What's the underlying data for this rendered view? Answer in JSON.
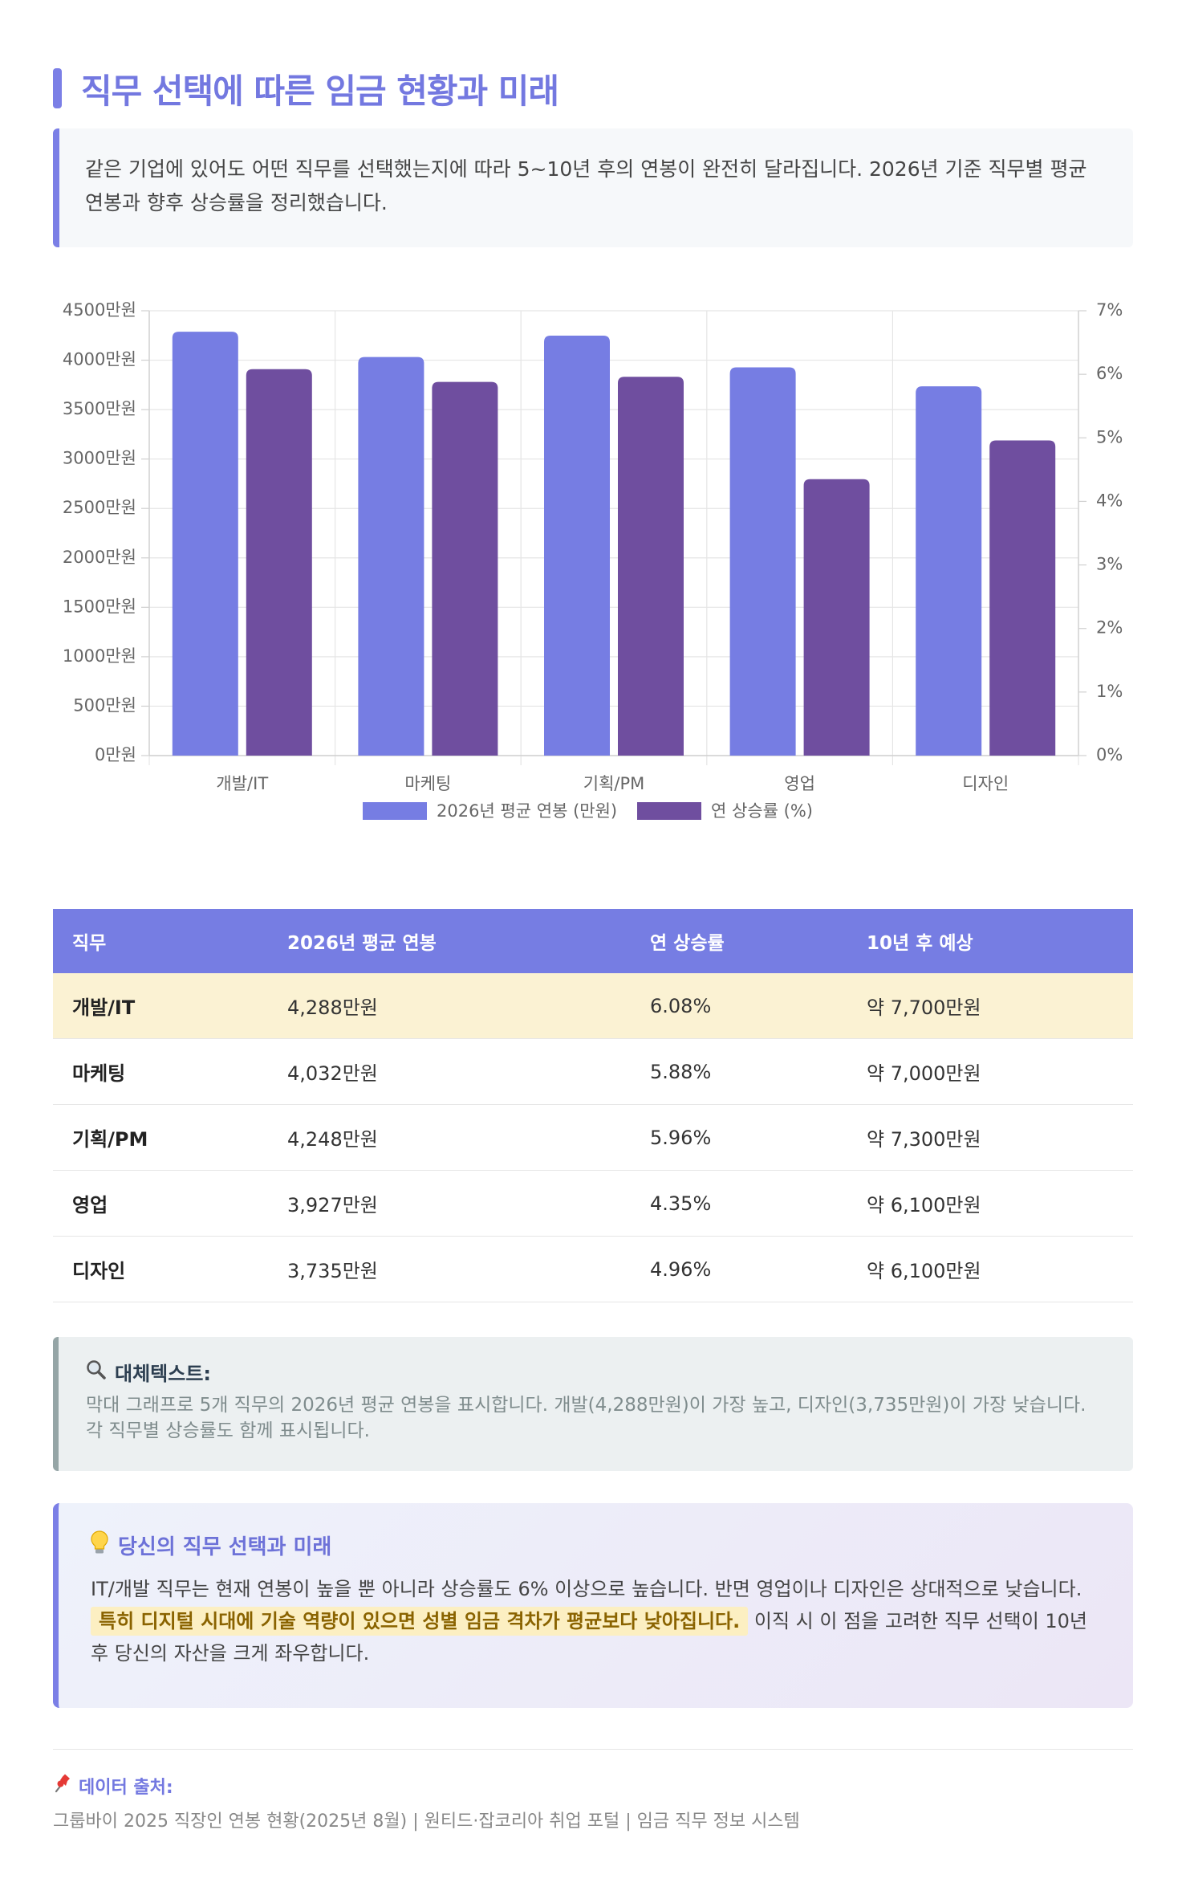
{
  "title": "직무 선택에 따른 임금 현황과 미래",
  "intro": "같은 기업에 있어도 어떤 직무를 선택했는지에 따라 5~10년 후의 연봉이 완전히 달라집니다. 2026년 기준 직무별 평균 연봉과 향후 상승률을 정리했습니다.",
  "colors": {
    "accent": "#7b7fe6",
    "salary_bar": "#767de3",
    "growth_bar": "#6f4e9f",
    "highlight_row": "#fbf2d3"
  },
  "chart_data": {
    "type": "bar",
    "categories": [
      "개발/IT",
      "마케팅",
      "기획/PM",
      "영업",
      "디자인"
    ],
    "series": [
      {
        "name": "2026년 평균 연봉 (만원)",
        "axis": "left",
        "color": "#767de3",
        "values": [
          4288,
          4032,
          4248,
          3927,
          3735
        ]
      },
      {
        "name": "연 상승률 (%)",
        "axis": "right",
        "color": "#6f4e9f",
        "values": [
          6.08,
          5.88,
          5.96,
          4.35,
          4.96
        ]
      }
    ],
    "left_axis": {
      "min": 0,
      "max": 4500,
      "step": 500,
      "tick_suffix": "만원"
    },
    "right_axis": {
      "min": 0,
      "max": 7,
      "step": 1,
      "tick_suffix": "%"
    },
    "grid": true,
    "legend_position": "bottom"
  },
  "table": {
    "headers": [
      "직무",
      "2026년 평균 연봉",
      "연 상승률",
      "10년 후 예상"
    ],
    "rows": [
      [
        "개발/IT",
        "4,288만원",
        "6.08%",
        "약 7,700만원"
      ],
      [
        "마케팅",
        "4,032만원",
        "5.88%",
        "약 7,000만원"
      ],
      [
        "기획/PM",
        "4,248만원",
        "5.96%",
        "약 7,300만원"
      ],
      [
        "영업",
        "3,927만원",
        "4.35%",
        "약 6,100만원"
      ],
      [
        "디자인",
        "3,735만원",
        "4.96%",
        "약 6,100만원"
      ]
    ]
  },
  "alt_text": {
    "icon": "magnifier-icon",
    "heading": "대체텍스트:",
    "body": "막대 그래프로 5개 직무의 2026년 평균 연봉을 표시합니다. 개발(4,288만원)이 가장 높고, 디자인(3,735만원)이 가장 낮습니다. 각 직무별 상승률도 함께 표시됩니다."
  },
  "future": {
    "icon": "lightbulb-icon",
    "heading": "당신의 직무 선택과 미래",
    "body_start": "IT/개발 직무는 현재 연봉이 높을 뿐 아니라 상승률도 6% 이상으로 높습니다. 반면 영업이나 디자인은 상대적으로 낮습니다.",
    "highlight": "특히 디지털 시대에 기술 역량이 있으면 성별 임금 격차가 평균보다 낮아집니다.",
    "body_end": "이직 시 이 점을 고려한 직무 선택이 10년 후 당신의 자산을 크게 좌우합니다."
  },
  "source": {
    "icon": "pushpin-icon",
    "heading": "데이터 출처:",
    "body": "그룹바이 2025 직장인 연봉 현황(2025년 8월) | 원티드·잡코리아 취업 포털 | 임금 직무 정보 시스템"
  }
}
